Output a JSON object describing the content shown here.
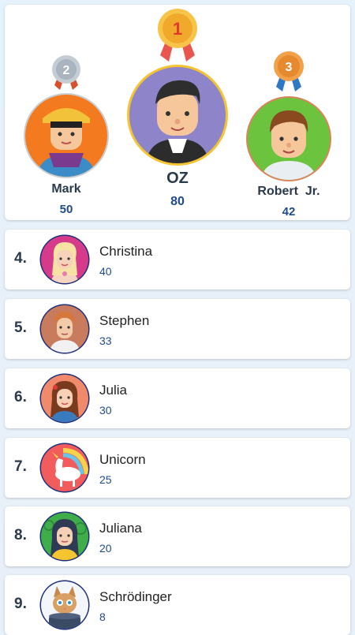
{
  "podium": {
    "first": {
      "rank": "1",
      "name": "OZ",
      "score": "80",
      "avatar": "boy-dark-hair-avatar",
      "medal": "gold-medal-icon"
    },
    "second": {
      "rank": "2",
      "name": "Mark",
      "score": "50",
      "avatar": "boy-cap-scarf-avatar",
      "medal": "silver-medal-icon"
    },
    "third": {
      "rank": "3",
      "name": "Robert  Jr.",
      "score": "42",
      "avatar": "boy-brown-hair-avatar",
      "medal": "bronze-medal-icon"
    }
  },
  "list": [
    {
      "rank": "4.",
      "name": "Christina",
      "score": "40",
      "avatar": "blonde-girl-avatar"
    },
    {
      "rank": "5.",
      "name": "Stephen",
      "score": "33",
      "avatar": "curly-hair-man-avatar"
    },
    {
      "rank": "6.",
      "name": "Julia",
      "score": "30",
      "avatar": "brown-hair-girl-avatar"
    },
    {
      "rank": "7.",
      "name": "Unicorn",
      "score": "25",
      "avatar": "unicorn-avatar"
    },
    {
      "rank": "8.",
      "name": "Juliana",
      "score": "20",
      "avatar": "dark-hair-girl-avatar"
    },
    {
      "rank": "9.",
      "name": "Schrödinger",
      "score": "8",
      "avatar": "cat-avatar"
    }
  ],
  "colors": {
    "score": "#1f4b8f",
    "name": "#2b3a4a",
    "gold": "#f5b83a",
    "silver": "#a9b4bf",
    "bronze": "#e58a2e"
  }
}
